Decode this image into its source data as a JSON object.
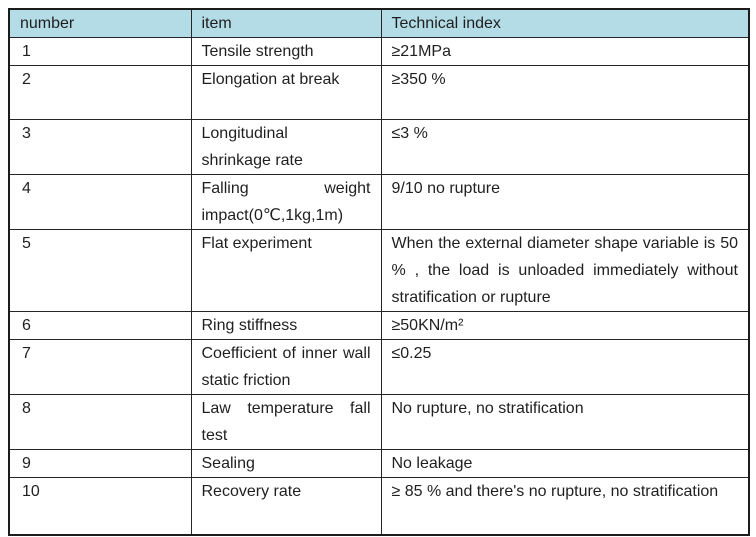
{
  "table": {
    "title": "technical-index-table",
    "columns": [
      "number",
      "item",
      "Technical index"
    ],
    "header_bg": "#b4dce6",
    "border_color": "#262626",
    "text_color": "#1f1f1f",
    "rows": [
      {
        "number": "1",
        "item": "Tensile strength",
        "technical_index": "≥21MPa"
      },
      {
        "number": "2",
        "item": "Elongation at break",
        "technical_index": "≥350 %"
      },
      {
        "number": "3",
        "item": "Longitudinal\nshrinkage rate",
        "technical_index": "≤3 %"
      },
      {
        "number": "4",
        "item": "Falling weight impact(0℃,1kg,1m)",
        "technical_index": "9/10 no rupture"
      },
      {
        "number": "5",
        "item": "Flat experiment",
        "technical_index": "When the external diameter shape variable is 50 % , the load is unloaded immediately without stratification or rupture"
      },
      {
        "number": "6",
        "item": "Ring stiffness",
        "technical_index": "≥50KN/m²"
      },
      {
        "number": "7",
        "item": "Coefficient of inner wall static friction",
        "technical_index": "≤0.25"
      },
      {
        "number": "8",
        "item": "Law temperature fall test",
        "technical_index": "No rupture, no stratification"
      },
      {
        "number": "9",
        "item": "Sealing",
        "technical_index": "No leakage"
      },
      {
        "number": "10",
        "item": "Recovery rate",
        "technical_index": "≥ 85 % and there's no rupture, no stratification"
      }
    ]
  }
}
